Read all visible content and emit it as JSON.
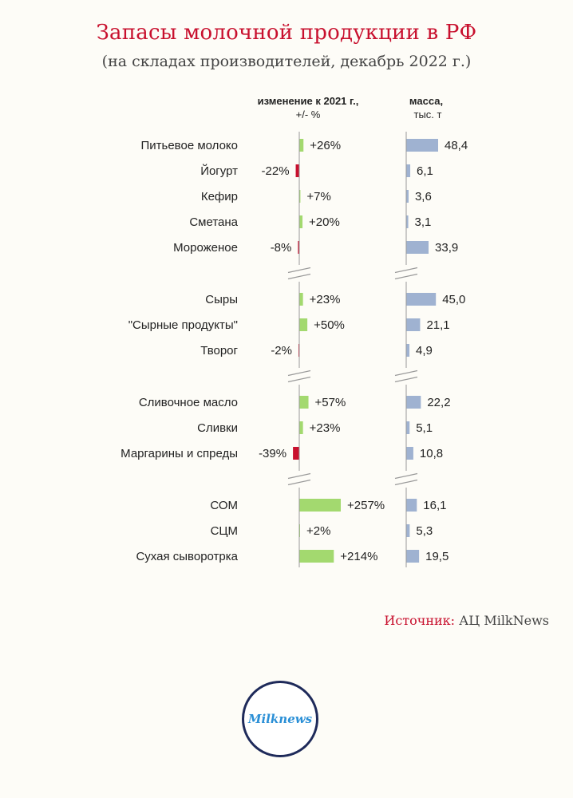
{
  "title": "Запасы молочной продукции в РФ",
  "subtitle": "(на складах производителей, декабрь 2022 г.)",
  "source": {
    "label": "Источник:",
    "value": "АЦ MilkNews"
  },
  "logo": {
    "text": "Milknews"
  },
  "colors": {
    "positive": "#a3d96f",
    "negative": "#c8102e",
    "mass": "#9fb2d1",
    "axis": "#999999",
    "title": "#c8102e"
  },
  "chart_data": [
    {
      "type": "bar",
      "title": "изменение к 2021 г., +/- %",
      "header_line1": "изменение к 2021 г.,",
      "header_line2": "+/- %",
      "axis_break_after": [
        4,
        7,
        10
      ],
      "categories": [
        "Питьевое молоко",
        "Йогурт",
        "Кефир",
        "Сметана",
        "Мороженое",
        "Сыры",
        "\"Сырные продукты\"",
        "Творог",
        "Сливочное масло",
        "Сливки",
        "Маргарины и спреды",
        "СОМ",
        "СЦМ",
        "Сухая сывоpотрка"
      ],
      "values": [
        26,
        -22,
        7,
        20,
        -8,
        23,
        50,
        -2,
        57,
        23,
        -39,
        257,
        2,
        214
      ],
      "labels": [
        "+26%",
        "-22%",
        "+7%",
        "+20%",
        "-8%",
        "+23%",
        "+50%",
        "-2%",
        "+57%",
        "+23%",
        "-39%",
        "+257%",
        "+2%",
        "+214%"
      ]
    },
    {
      "type": "bar",
      "title": "масса, тыс. т",
      "header_line1": "масса,",
      "header_line2": "тыс. т",
      "axis_break_after": [
        4,
        7,
        10
      ],
      "categories": [
        "Питьевое молоко",
        "Йогурт",
        "Кефир",
        "Сметана",
        "Мороженое",
        "Сыры",
        "\"Сырные продукты\"",
        "Творог",
        "Сливочное масло",
        "Сливки",
        "Маргарины и спреды",
        "СОМ",
        "СЦМ",
        "Сухая сывоpотрка"
      ],
      "values": [
        48.4,
        6.1,
        3.6,
        3.1,
        33.9,
        45.0,
        21.1,
        4.9,
        22.2,
        5.1,
        10.8,
        16.1,
        5.3,
        19.5
      ],
      "labels": [
        "48,4",
        "6,1",
        "3,6",
        "3,1",
        "33,9",
        "45,0",
        "21,1",
        "4,9",
        "22,2",
        "5,1",
        "10,8",
        "16,1",
        "5,3",
        "19,5"
      ]
    }
  ]
}
